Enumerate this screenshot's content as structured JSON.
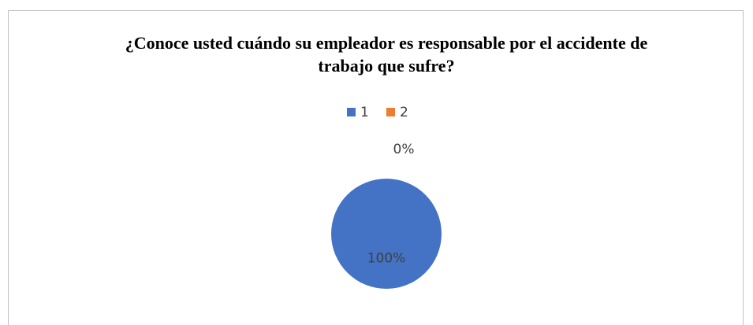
{
  "chart_data": {
    "type": "pie",
    "title": "¿Conoce usted cuándo su empleador es responsable por el accidente de trabajo que sufre?",
    "categories": [
      "1",
      "2"
    ],
    "values": [
      100,
      0
    ],
    "value_labels": [
      "100%",
      "0%"
    ],
    "colors": [
      "#4472c4",
      "#ed7d31"
    ],
    "legend": "top"
  }
}
